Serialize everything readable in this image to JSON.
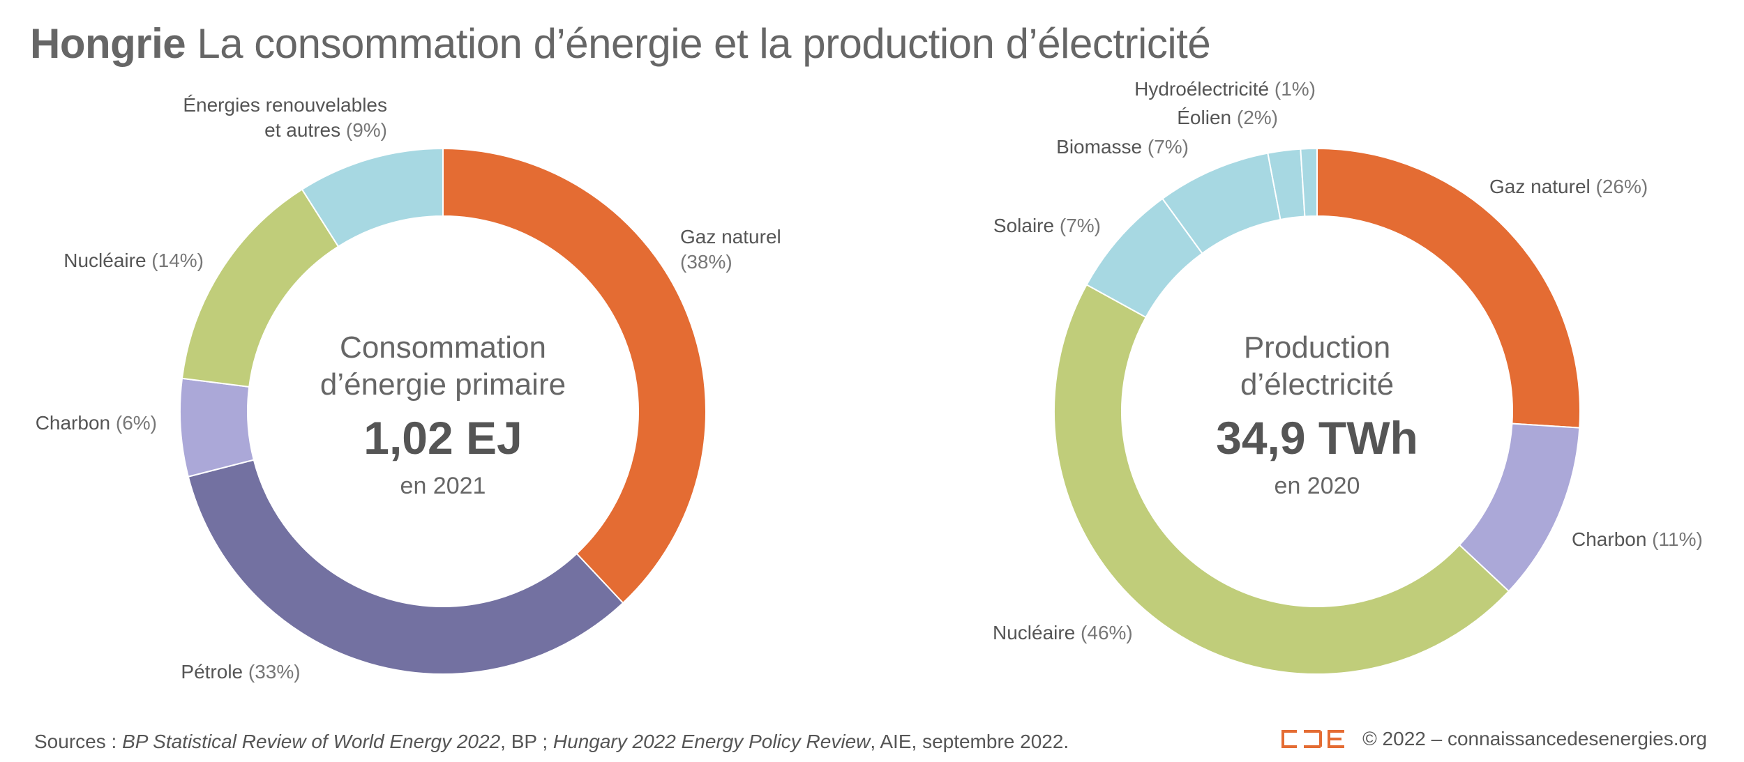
{
  "title": {
    "country": "Hongrie",
    "subtitle": "La consommation d’énergie et la production d’électricité"
  },
  "chart_data": [
    {
      "type": "pie",
      "title": "Consommation d’énergie primaire",
      "center_title_lines": [
        "Consommation",
        "d’énergie primaire"
      ],
      "center_value": "1,02 EJ",
      "center_year": "en 2021",
      "slices": [
        {
          "label": "Gaz naturel",
          "percent": 38,
          "pct_text": "(38%)",
          "color": "#E46C33"
        },
        {
          "label": "Pétrole",
          "percent": 33,
          "pct_text": "(33%)",
          "color": "#7371A1"
        },
        {
          "label": "Charbon",
          "percent": 6,
          "pct_text": "(6%)",
          "color": "#ABA8D8"
        },
        {
          "label": "Nucléaire",
          "percent": 14,
          "pct_text": "(14%)",
          "color": "#C0CD7A"
        },
        {
          "label": "Énergies renouvelables et autres",
          "label_lines": [
            "Énergies renouvelables",
            "et autres"
          ],
          "percent": 9,
          "pct_text": "(9%)",
          "color": "#A7D8E2"
        }
      ]
    },
    {
      "type": "pie",
      "title": "Production d’électricité",
      "center_title_lines": [
        "Production",
        "d’électricité"
      ],
      "center_value": "34,9 TWh",
      "center_year": "en 2020",
      "slices": [
        {
          "label": "Gaz naturel",
          "percent": 26,
          "pct_text": "(26%)",
          "color": "#E46C33"
        },
        {
          "label": "Charbon",
          "percent": 11,
          "pct_text": "(11%)",
          "color": "#ABA8D8"
        },
        {
          "label": "Nucléaire",
          "percent": 46,
          "pct_text": "(46%)",
          "color": "#C0CD7A"
        },
        {
          "label": "Solaire",
          "percent": 7,
          "pct_text": "(7%)",
          "color": "#A7D8E2"
        },
        {
          "label": "Biomasse",
          "percent": 7,
          "pct_text": "(7%)",
          "color": "#A7D8E2"
        },
        {
          "label": "Éolien",
          "percent": 2,
          "pct_text": "(2%)",
          "color": "#A7D8E2"
        },
        {
          "label": "Hydroélectricité",
          "percent": 1,
          "pct_text": "(1%)",
          "color": "#A7D8E2"
        }
      ]
    }
  ],
  "footer": {
    "sources_prefix": "Sources : ",
    "source1": "BP Statistical Review of World Energy 2022",
    "source1_after": ", BP ; ",
    "source2": "Hungary 2022 Energy Policy Review",
    "source2_after": ", AIE, septembre 2022.",
    "copyright": "© 2022 – connaissancedesenergies.org",
    "logo_color": "#E46C33"
  }
}
